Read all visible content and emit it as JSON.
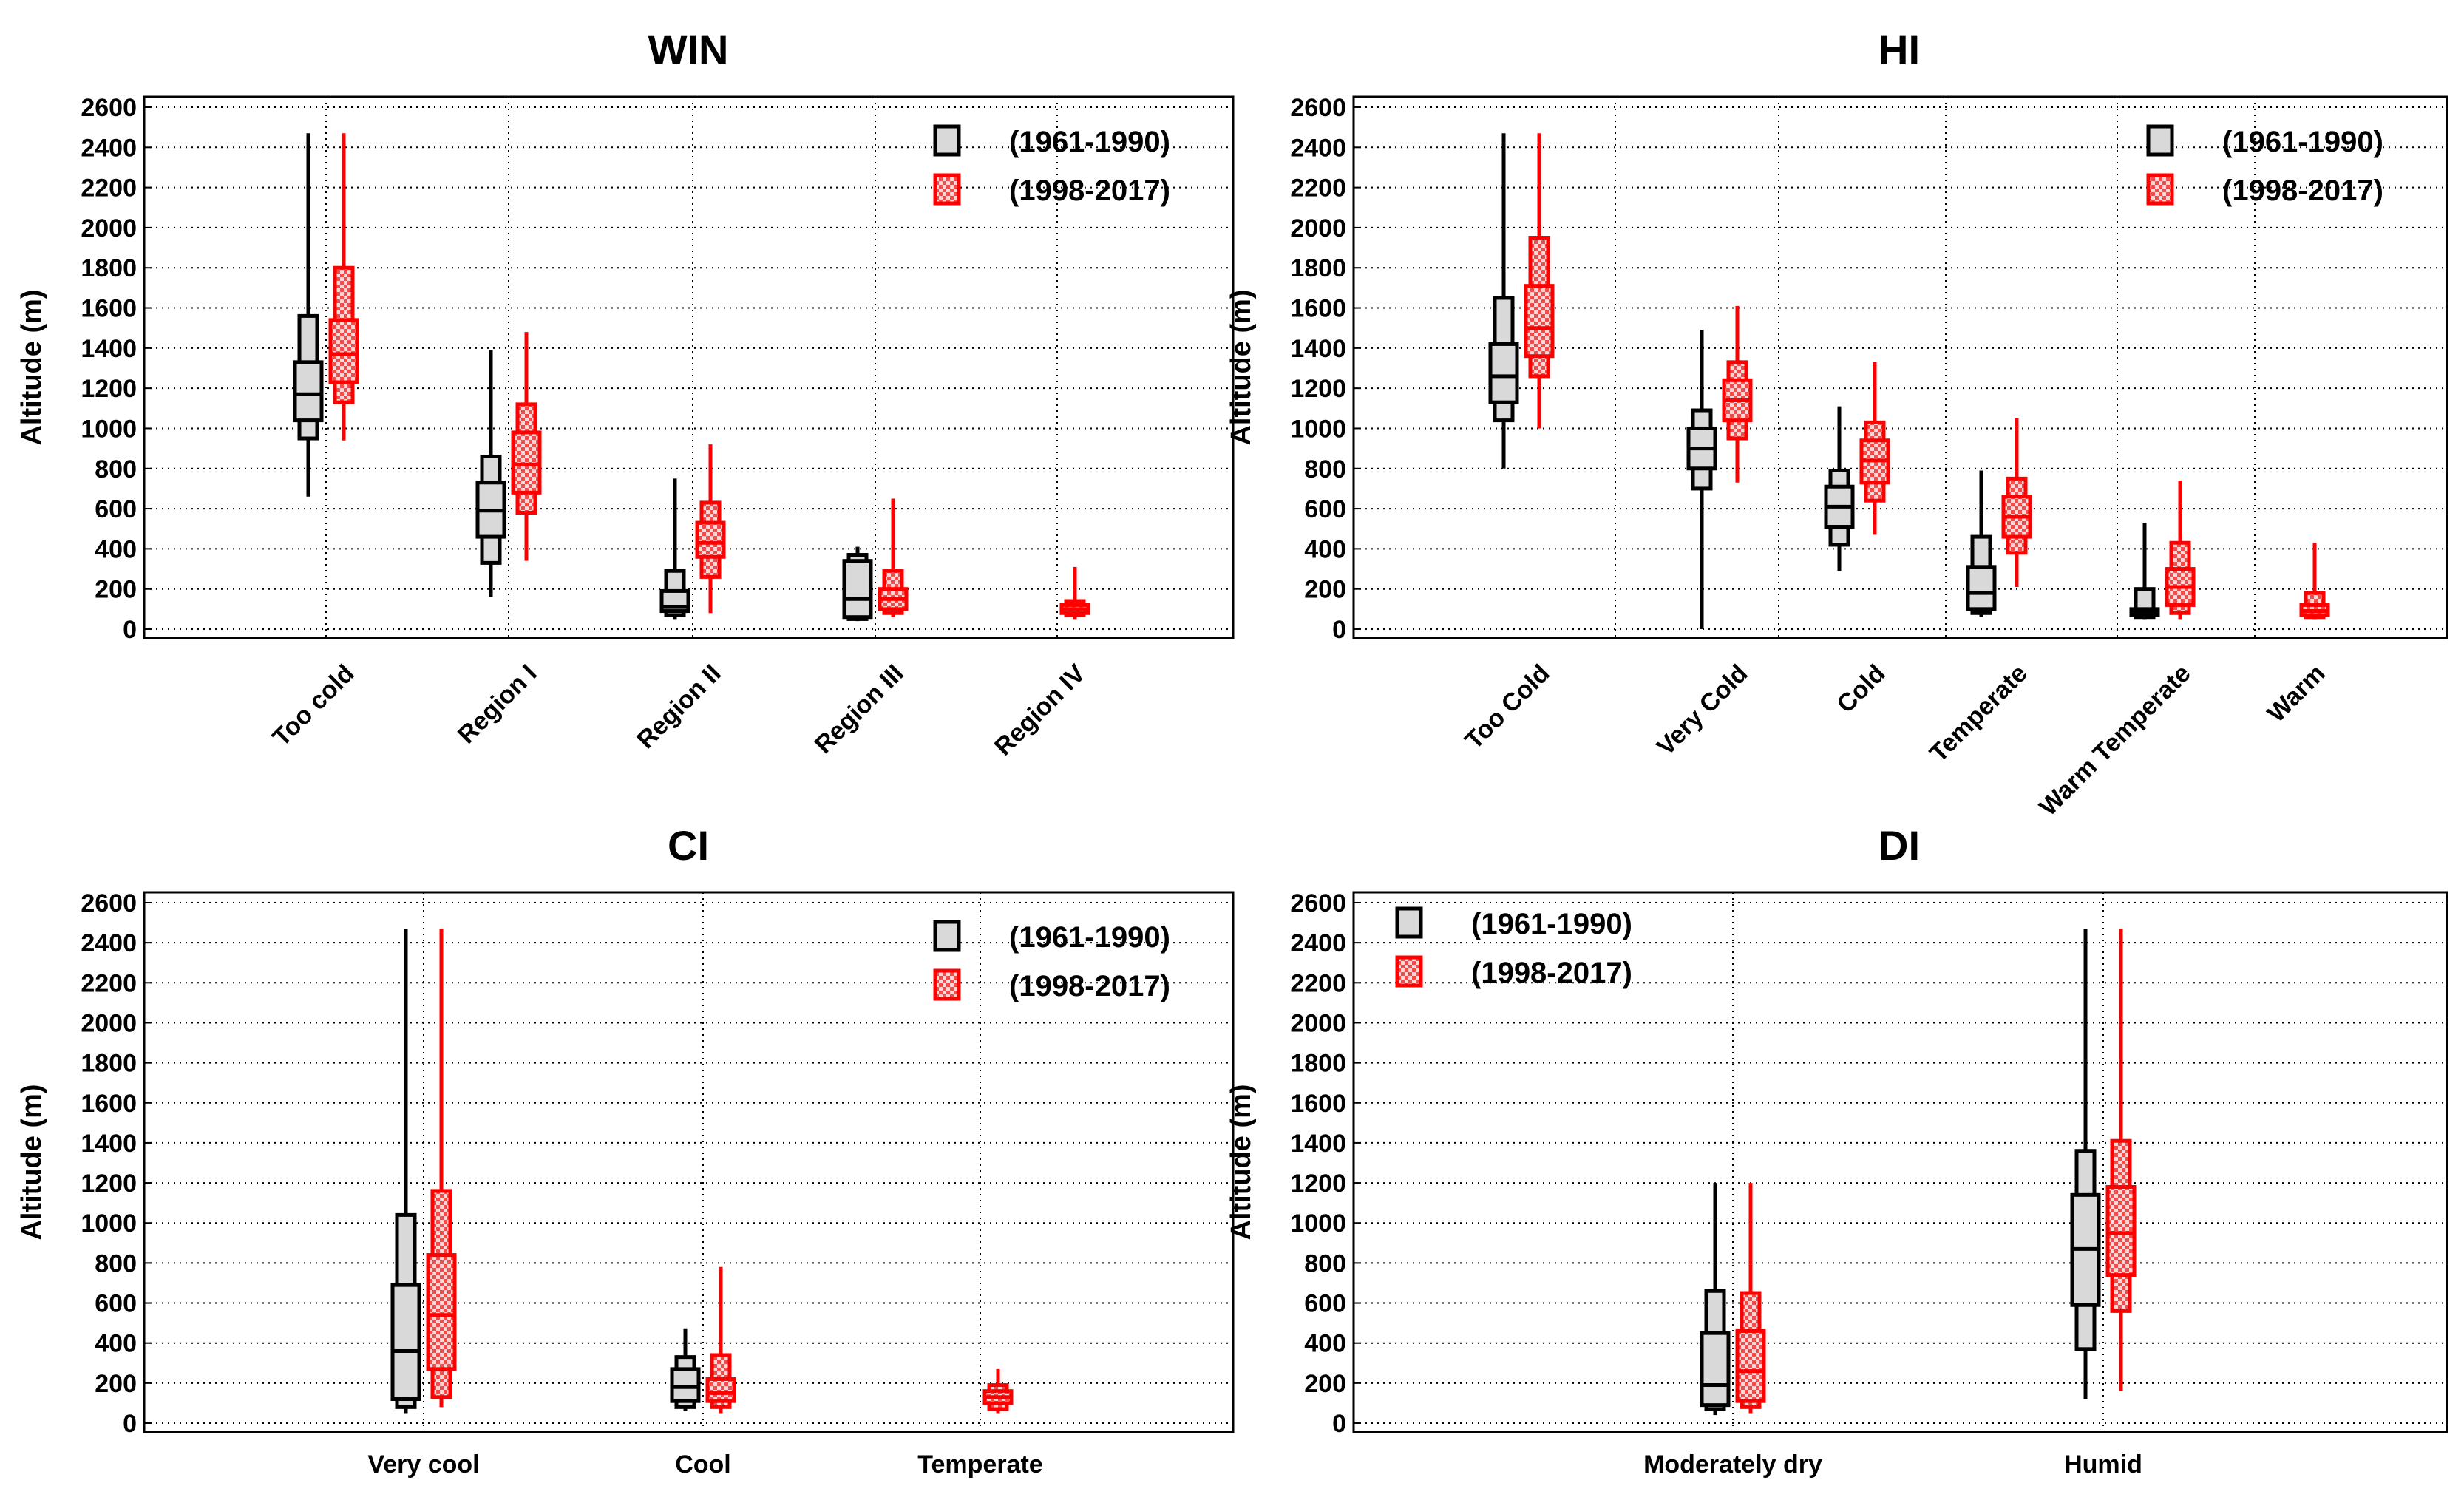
{
  "chart_data": [
    {
      "type": "boxplot",
      "title": "WIN",
      "ylabel": "Altitude (m)",
      "ylim": [
        0,
        2600
      ],
      "yticks": [
        "0",
        "200",
        "400",
        "600",
        "800",
        "1000",
        "1200",
        "1400",
        "1600",
        "1800",
        "2000",
        "2200",
        "2400",
        "2600"
      ],
      "categories": [
        "Too cold",
        "Region I",
        "Region II",
        "Region III",
        "Region IV"
      ],
      "category_label_rotation": "rotated",
      "grid": true,
      "legend_position": "top-right",
      "series": [
        {
          "name": "(1961-1990)",
          "color": "#000000",
          "fill": "#d9d9d9",
          "pattern": "solid",
          "boxes": [
            {
              "min": 660,
              "p10": 950,
              "p25": 1040,
              "median": 1170,
              "p75": 1330,
              "p90": 1560,
              "max": 2470
            },
            {
              "min": 160,
              "p10": 330,
              "p25": 460,
              "median": 590,
              "p75": 730,
              "p90": 860,
              "max": 1390
            },
            {
              "min": 50,
              "p10": 70,
              "p25": 90,
              "median": 110,
              "p75": 190,
              "p90": 290,
              "max": 750
            },
            {
              "min": 40,
              "p10": 50,
              "p25": 60,
              "median": 150,
              "p75": 340,
              "p90": 370,
              "max": 410
            },
            null
          ]
        },
        {
          "name": "(1998-2017)",
          "color": "#ff0000",
          "fill": "#f7b5b5",
          "pattern": "checker",
          "boxes": [
            {
              "min": 940,
              "p10": 1130,
              "p25": 1230,
              "median": 1370,
              "p75": 1540,
              "p90": 1800,
              "max": 2470
            },
            {
              "min": 340,
              "p10": 580,
              "p25": 680,
              "median": 820,
              "p75": 980,
              "p90": 1120,
              "max": 1480
            },
            {
              "min": 80,
              "p10": 260,
              "p25": 360,
              "median": 430,
              "p75": 530,
              "p90": 630,
              "max": 920
            },
            {
              "min": 60,
              "p10": 80,
              "p25": 100,
              "median": 150,
              "p75": 200,
              "p90": 290,
              "max": 650
            },
            {
              "min": 50,
              "p10": 70,
              "p25": 80,
              "median": 100,
              "p75": 120,
              "p90": 140,
              "max": 310
            }
          ]
        }
      ]
    },
    {
      "type": "boxplot",
      "title": "HI",
      "ylabel": "Altitude (m)",
      "ylim": [
        0,
        2600
      ],
      "yticks": [
        "0",
        "200",
        "400",
        "600",
        "800",
        "1000",
        "1200",
        "1400",
        "1600",
        "1800",
        "2000",
        "2200",
        "2400",
        "2600"
      ],
      "categories": [
        "Too Cold",
        "Very Cold",
        "Cold",
        "Temperate",
        "Warm Temperate",
        "Warm"
      ],
      "category_label_rotation": "rotated",
      "grid": true,
      "legend_position": "top-right",
      "series": [
        {
          "name": "(1961-1990)",
          "color": "#000000",
          "fill": "#d9d9d9",
          "pattern": "solid",
          "boxes": [
            {
              "min": 800,
              "p10": 1040,
              "p25": 1130,
              "median": 1260,
              "p75": 1420,
              "p90": 1650,
              "max": 2470
            },
            {
              "min": 0,
              "p10": 700,
              "p25": 800,
              "median": 900,
              "p75": 1000,
              "p90": 1090,
              "max": 1490
            },
            {
              "min": 290,
              "p10": 420,
              "p25": 510,
              "median": 610,
              "p75": 710,
              "p90": 790,
              "max": 1110
            },
            {
              "min": 60,
              "p10": 80,
              "p25": 100,
              "median": 180,
              "p75": 310,
              "p90": 460,
              "max": 790
            },
            {
              "min": 50,
              "p10": 60,
              "p25": 70,
              "median": 80,
              "p75": 100,
              "p90": 200,
              "max": 530
            },
            null
          ]
        },
        {
          "name": "(1998-2017)",
          "color": "#ff0000",
          "fill": "#f7b5b5",
          "pattern": "checker",
          "boxes": [
            {
              "min": 1000,
              "p10": 1260,
              "p25": 1360,
              "median": 1500,
              "p75": 1710,
              "p90": 1950,
              "max": 2470
            },
            {
              "min": 730,
              "p10": 950,
              "p25": 1040,
              "median": 1140,
              "p75": 1240,
              "p90": 1330,
              "max": 1610
            },
            {
              "min": 470,
              "p10": 640,
              "p25": 730,
              "median": 840,
              "p75": 940,
              "p90": 1030,
              "max": 1330
            },
            {
              "min": 210,
              "p10": 380,
              "p25": 460,
              "median": 560,
              "p75": 660,
              "p90": 750,
              "max": 1050
            },
            {
              "min": 50,
              "p10": 80,
              "p25": 120,
              "median": 210,
              "p75": 300,
              "p90": 430,
              "max": 740
            },
            {
              "min": 50,
              "p10": 60,
              "p25": 70,
              "median": 90,
              "p75": 120,
              "p90": 180,
              "max": 430
            }
          ]
        }
      ]
    },
    {
      "type": "boxplot",
      "title": "CI",
      "ylabel": "Altitude (m)",
      "ylim": [
        0,
        2600
      ],
      "yticks": [
        "0",
        "200",
        "400",
        "600",
        "800",
        "1000",
        "1200",
        "1400",
        "1600",
        "1800",
        "2000",
        "2200",
        "2400",
        "2600"
      ],
      "categories": [
        "Very cool",
        "Cool",
        "Temperate"
      ],
      "category_label_rotation": "horizontal",
      "grid": true,
      "legend_position": "top-right",
      "series": [
        {
          "name": "(1961-1990)",
          "color": "#000000",
          "fill": "#d9d9d9",
          "pattern": "solid",
          "boxes": [
            {
              "min": 50,
              "p10": 80,
              "p25": 120,
              "median": 360,
              "p75": 690,
              "p90": 1040,
              "max": 2470
            },
            {
              "min": 60,
              "p10": 80,
              "p25": 110,
              "median": 180,
              "p75": 270,
              "p90": 330,
              "max": 470
            },
            null
          ]
        },
        {
          "name": "(1998-2017)",
          "color": "#ff0000",
          "fill": "#f7b5b5",
          "pattern": "checker",
          "boxes": [
            {
              "min": 80,
              "p10": 130,
              "p25": 270,
              "median": 540,
              "p75": 840,
              "p90": 1160,
              "max": 2470
            },
            {
              "min": 50,
              "p10": 80,
              "p25": 110,
              "median": 150,
              "p75": 220,
              "p90": 340,
              "max": 780
            },
            {
              "min": 50,
              "p10": 70,
              "p25": 100,
              "median": 130,
              "p75": 160,
              "p90": 190,
              "max": 270
            }
          ]
        }
      ]
    },
    {
      "type": "boxplot",
      "title": "DI",
      "ylabel": "Altitude (m)",
      "ylim": [
        0,
        2600
      ],
      "yticks": [
        "0",
        "200",
        "400",
        "600",
        "800",
        "1000",
        "1200",
        "1400",
        "1600",
        "1800",
        "2000",
        "2200",
        "2400",
        "2600"
      ],
      "categories": [
        "Moderately dry",
        "Humid"
      ],
      "category_label_rotation": "horizontal",
      "grid": true,
      "legend_position": "top-left",
      "series": [
        {
          "name": "(1961-1990)",
          "color": "#000000",
          "fill": "#d9d9d9",
          "pattern": "solid",
          "boxes": [
            {
              "min": 40,
              "p10": 70,
              "p25": 90,
              "median": 190,
              "p75": 450,
              "p90": 660,
              "max": 1200
            },
            {
              "min": 120,
              "p10": 370,
              "p25": 590,
              "median": 870,
              "p75": 1140,
              "p90": 1360,
              "max": 2470
            }
          ]
        },
        {
          "name": "(1998-2017)",
          "color": "#ff0000",
          "fill": "#f7b5b5",
          "pattern": "checker",
          "boxes": [
            {
              "min": 50,
              "p10": 80,
              "p25": 110,
              "median": 260,
              "p75": 460,
              "p90": 650,
              "max": 1200
            },
            {
              "min": 160,
              "p10": 560,
              "p25": 740,
              "median": 950,
              "p75": 1180,
              "p90": 1410,
              "max": 2470
            }
          ]
        }
      ]
    }
  ]
}
